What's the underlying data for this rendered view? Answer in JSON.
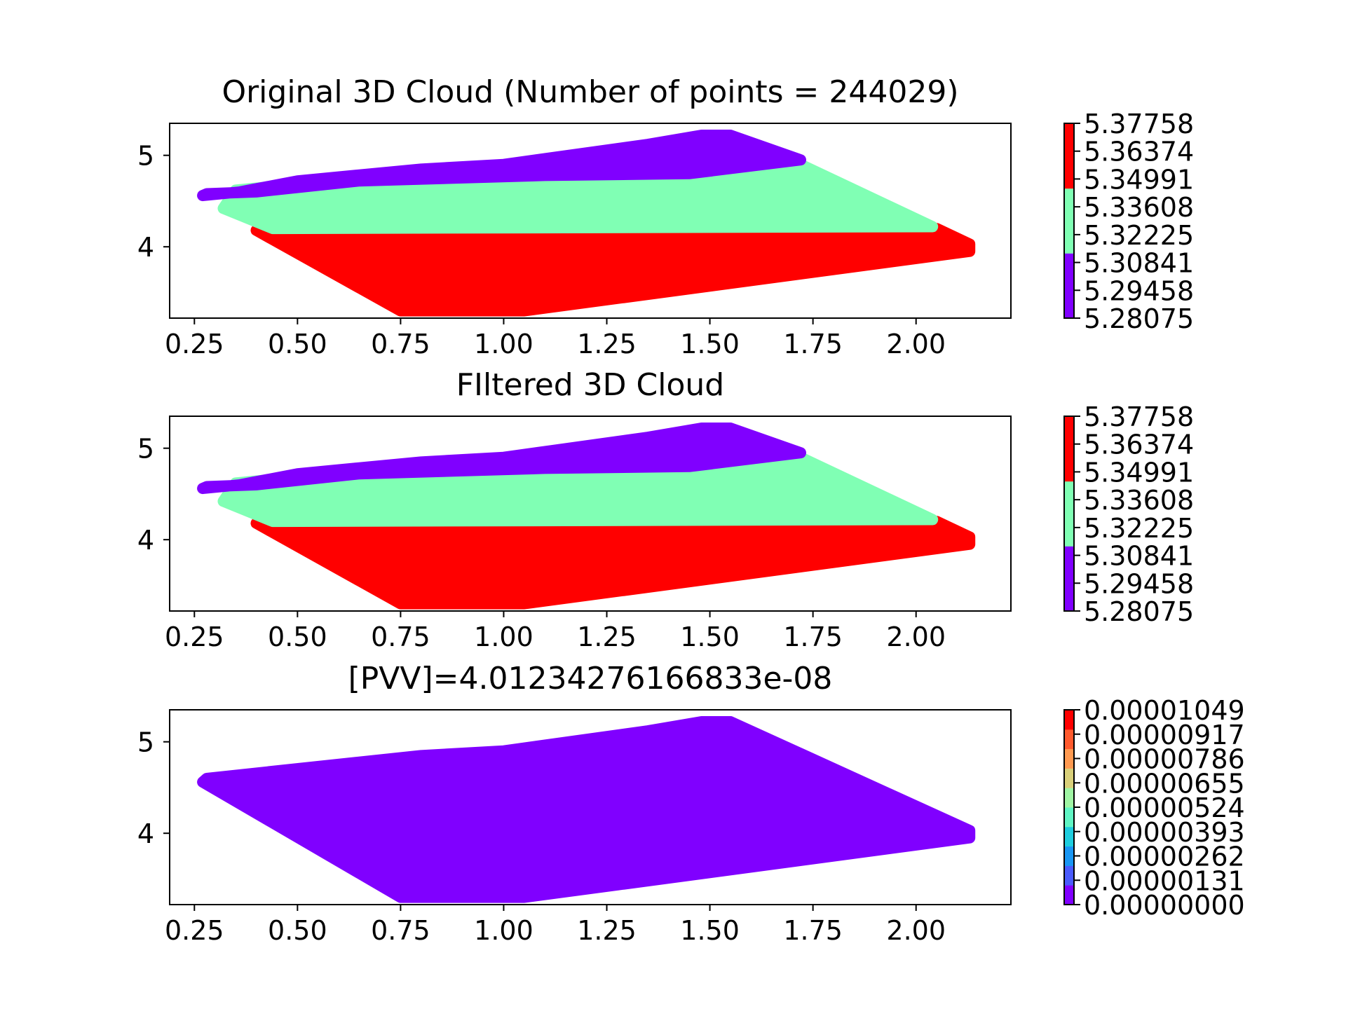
{
  "chart_data": [
    {
      "type": "scatter",
      "title": "Original 3D Cloud (Number of points = 244029)",
      "xlim": [
        0.19,
        2.23
      ],
      "ylim": [
        3.22,
        5.35
      ],
      "xticks": [
        "0.25",
        "0.50",
        "0.75",
        "1.00",
        "1.25",
        "1.50",
        "1.75",
        "2.00"
      ],
      "yticks": [
        "4",
        "5"
      ],
      "regions": [
        {
          "color": "#ff0000",
          "polygon": [
            [
              0.75,
              3.3
            ],
            [
              1.05,
              3.3
            ],
            [
              2.13,
              3.95
            ],
            [
              2.13,
              4.03
            ],
            [
              2.05,
              4.2
            ],
            [
              0.43,
              4.2
            ],
            [
              0.4,
              4.18
            ]
          ]
        },
        {
          "color": "#80ffb4",
          "polygon": [
            [
              0.32,
              4.42
            ],
            [
              0.35,
              4.62
            ],
            [
              0.65,
              4.75
            ],
            [
              1.1,
              4.8
            ],
            [
              1.45,
              4.8
            ],
            [
              1.72,
              4.9
            ],
            [
              2.04,
              4.22
            ],
            [
              0.44,
              4.2
            ]
          ]
        },
        {
          "color": "#8000ff",
          "polygon": [
            [
              0.28,
              4.58
            ],
            [
              0.27,
              4.56
            ],
            [
              0.36,
              4.6
            ],
            [
              0.5,
              4.72
            ],
            [
              0.8,
              4.85
            ],
            [
              1.0,
              4.9
            ],
            [
              1.35,
              5.12
            ],
            [
              1.48,
              5.22
            ],
            [
              1.55,
              5.22
            ],
            [
              1.72,
              4.95
            ],
            [
              1.45,
              4.8
            ],
            [
              1.1,
              4.78
            ],
            [
              0.65,
              4.72
            ],
            [
              0.4,
              4.6
            ]
          ]
        }
      ],
      "colorbar": {
        "ticks": [
          "5.37758",
          "5.36374",
          "5.34991",
          "5.33608",
          "5.32225",
          "5.30841",
          "5.29458",
          "5.28075"
        ],
        "bands": [
          "#8000ff",
          "#80ffb4",
          "#ff0000"
        ]
      }
    },
    {
      "type": "scatter",
      "title": "FIltered 3D Cloud",
      "xlim": [
        0.19,
        2.23
      ],
      "ylim": [
        3.22,
        5.35
      ],
      "xticks": [
        "0.25",
        "0.50",
        "0.75",
        "1.00",
        "1.25",
        "1.50",
        "1.75",
        "2.00"
      ],
      "yticks": [
        "4",
        "5"
      ],
      "regions": [
        {
          "color": "#ff0000",
          "polygon": [
            [
              0.75,
              3.3
            ],
            [
              1.05,
              3.3
            ],
            [
              2.13,
              3.95
            ],
            [
              2.13,
              4.03
            ],
            [
              2.05,
              4.2
            ],
            [
              0.43,
              4.2
            ],
            [
              0.4,
              4.18
            ]
          ]
        },
        {
          "color": "#80ffb4",
          "polygon": [
            [
              0.32,
              4.42
            ],
            [
              0.35,
              4.62
            ],
            [
              0.65,
              4.75
            ],
            [
              1.1,
              4.8
            ],
            [
              1.45,
              4.8
            ],
            [
              1.72,
              4.9
            ],
            [
              2.04,
              4.22
            ],
            [
              0.44,
              4.2
            ]
          ]
        },
        {
          "color": "#8000ff",
          "polygon": [
            [
              0.28,
              4.58
            ],
            [
              0.27,
              4.56
            ],
            [
              0.36,
              4.6
            ],
            [
              0.5,
              4.72
            ],
            [
              0.8,
              4.85
            ],
            [
              1.0,
              4.9
            ],
            [
              1.35,
              5.12
            ],
            [
              1.48,
              5.22
            ],
            [
              1.55,
              5.22
            ],
            [
              1.72,
              4.95
            ],
            [
              1.45,
              4.8
            ],
            [
              1.1,
              4.78
            ],
            [
              0.65,
              4.72
            ],
            [
              0.4,
              4.6
            ]
          ]
        }
      ],
      "colorbar": {
        "ticks": [
          "5.37758",
          "5.36374",
          "5.34991",
          "5.33608",
          "5.32225",
          "5.30841",
          "5.29458",
          "5.28075"
        ],
        "bands": [
          "#8000ff",
          "#80ffb4",
          "#ff0000"
        ]
      }
    },
    {
      "type": "scatter",
      "title": "[PVV]=4.01234276166833e-08",
      "xlim": [
        0.19,
        2.23
      ],
      "ylim": [
        3.22,
        5.35
      ],
      "xticks": [
        "0.25",
        "0.50",
        "0.75",
        "1.00",
        "1.25",
        "1.50",
        "1.75",
        "2.00"
      ],
      "yticks": [
        "4",
        "5"
      ],
      "regions": [
        {
          "color": "#8000ff",
          "polygon": [
            [
              0.27,
              4.56
            ],
            [
              0.28,
              4.6
            ],
            [
              0.8,
              4.85
            ],
            [
              1.0,
              4.9
            ],
            [
              1.35,
              5.12
            ],
            [
              1.48,
              5.22
            ],
            [
              1.55,
              5.22
            ],
            [
              2.13,
              4.03
            ],
            [
              2.13,
              3.95
            ],
            [
              1.05,
              3.3
            ],
            [
              0.75,
              3.3
            ]
          ]
        }
      ],
      "colorbar": {
        "ticks": [
          "0.00001049",
          "0.00000917",
          "0.00000786",
          "0.00000655",
          "0.00000524",
          "0.00000393",
          "0.00000262",
          "0.00000131",
          "0.00000000"
        ],
        "bands": [
          "#8000ff",
          "#4a5bfc",
          "#1996f3",
          "#1ecdde",
          "#60f5c4",
          "#a0f5a4",
          "#d9d07a",
          "#ff9a51",
          "#ff5a2d",
          "#ff0000"
        ]
      }
    }
  ]
}
